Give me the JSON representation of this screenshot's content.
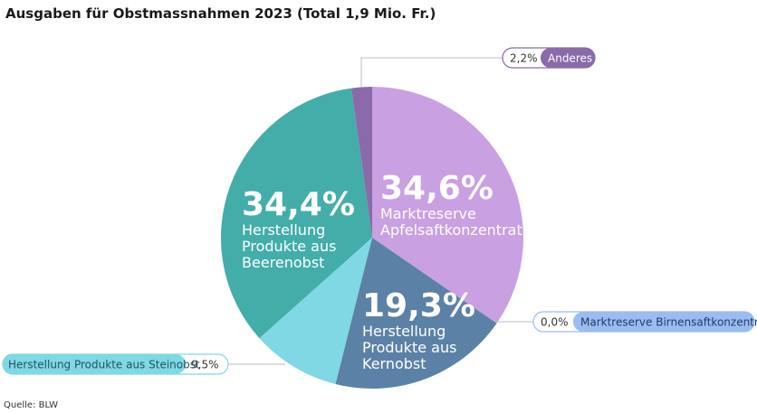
{
  "title": "Ausgaben für Obstmassnahmen 2023 (Total 1,9 Mio. Fr.)",
  "source": "Quelle: BLW",
  "chart_data": {
    "type": "pie",
    "title": "Ausgaben für Obstmassnahmen 2023 (Total 1,9 Mio. Fr.)",
    "slices": [
      {
        "label": "Marktreserve Apfelsaftkonzentrat",
        "value": 34.6,
        "display": "34,6%",
        "label_lines": [
          "Marktreserve",
          "Apfelsaftkonzentrat"
        ],
        "color": "#c9a0e2"
      },
      {
        "label": "Marktreserve Birnensaftkonzentrat",
        "value": 0.0,
        "display": "0,0%",
        "color": "#9bbcf0"
      },
      {
        "label": "Herstellung Produkte aus Kernobst",
        "value": 19.3,
        "display": "19,3%",
        "label_lines": [
          "Herstellung",
          "Produkte aus",
          "Kernobst"
        ],
        "color": "#5b82a6"
      },
      {
        "label": "Herstellung Produkte aus Steinobst",
        "value": 9.5,
        "display": "9,5%",
        "color": "#7fd8e4"
      },
      {
        "label": "Herstellung Produkte aus Beerenobst",
        "value": 34.4,
        "display": "34,4%",
        "label_lines": [
          "Herstellung",
          "Produkte aus",
          "Beerenobst"
        ],
        "color": "#43ada9"
      },
      {
        "label": "Anderes",
        "value": 2.2,
        "display": "2,2%",
        "color": "#8a6aa8"
      }
    ]
  }
}
